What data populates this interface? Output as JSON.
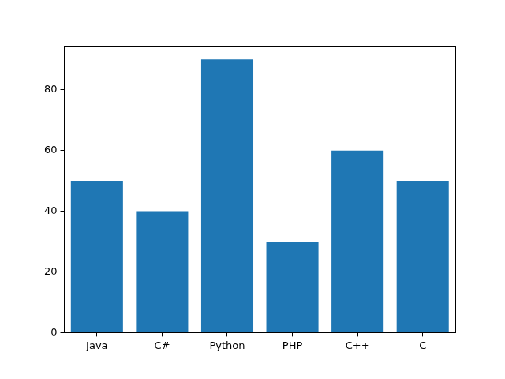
{
  "chart_data": {
    "type": "bar",
    "categories": [
      "Java",
      "C#",
      "Python",
      "PHP",
      "C++",
      "C"
    ],
    "values": [
      50,
      40,
      90,
      30,
      60,
      50
    ],
    "color": "#1f77b4",
    "ylim": [
      0,
      94.5
    ],
    "yticks": [
      0,
      20,
      40,
      60,
      80
    ],
    "grid": false
  }
}
